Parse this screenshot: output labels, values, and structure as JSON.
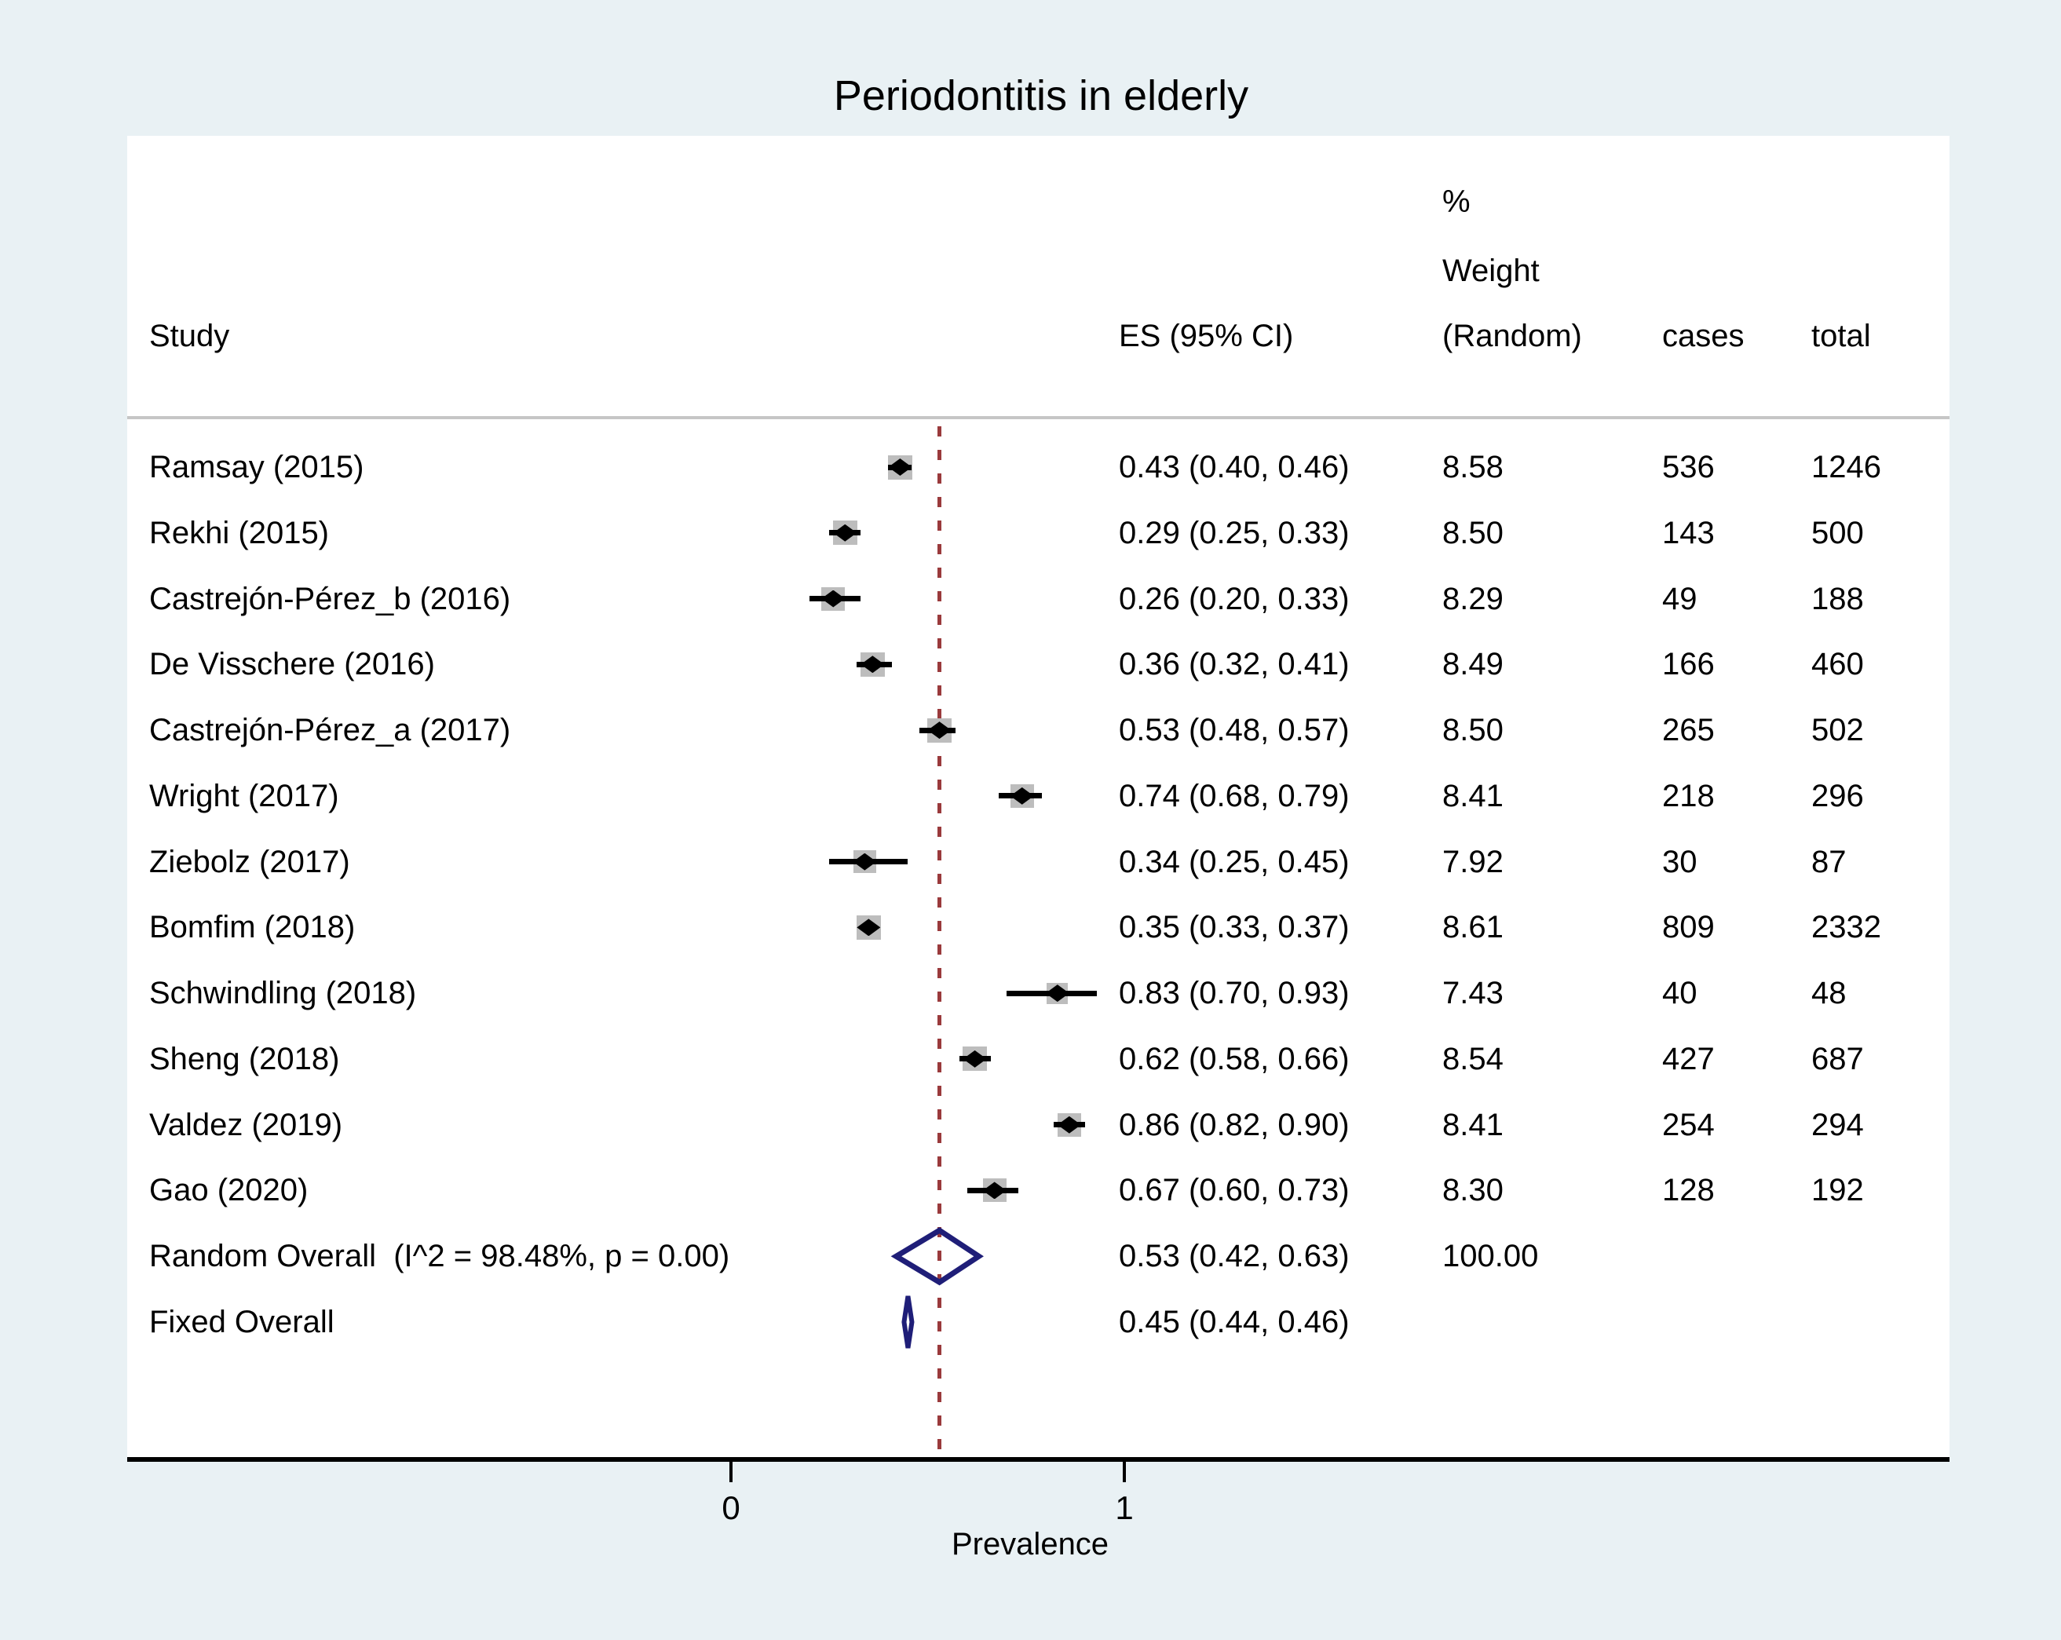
{
  "title": "Periodontitis in elderly",
  "header": {
    "study": "Study",
    "es": "ES (95% CI)",
    "pct": "%",
    "weight": "Weight",
    "weight_model": "(Random)",
    "cases": "cases",
    "total": "total"
  },
  "axis": {
    "xlabel": "Prevalence",
    "ticks": [
      {
        "label": "0",
        "value": 0
      },
      {
        "label": "1",
        "value": 1
      }
    ]
  },
  "colors": {
    "background": "#e9f1f4",
    "panel": "#ffffff",
    "header_rule": "#c6c6c6",
    "null_line": "#9a3a3c",
    "ci_line": "#000000",
    "weight_box": "#bdbdbd",
    "marker": "#000000",
    "overall_diamond": "#1f1e78",
    "text": "#000000"
  },
  "chart_data": {
    "type": "forest",
    "title": "Periodontitis in elderly",
    "xlabel": "Prevalence",
    "x_ticks": [
      0,
      1
    ],
    "null_line_value": 0.53,
    "legend_position": "none",
    "grid": false,
    "studies": [
      {
        "label": "Ramsay (2015)",
        "es": 0.43,
        "lo": 0.4,
        "hi": 0.46,
        "es_text": "0.43 (0.40, 0.46)",
        "weight": "8.58",
        "cases": "536",
        "total": "1246"
      },
      {
        "label": "Rekhi (2015)",
        "es": 0.29,
        "lo": 0.25,
        "hi": 0.33,
        "es_text": "0.29 (0.25, 0.33)",
        "weight": "8.50",
        "cases": "143",
        "total": "500"
      },
      {
        "label": "Castrejón-Pérez_b (2016)",
        "es": 0.26,
        "lo": 0.2,
        "hi": 0.33,
        "es_text": "0.26 (0.20, 0.33)",
        "weight": "8.29",
        "cases": "49",
        "total": "188"
      },
      {
        "label": "De Visschere (2016)",
        "es": 0.36,
        "lo": 0.32,
        "hi": 0.41,
        "es_text": "0.36 (0.32, 0.41)",
        "weight": "8.49",
        "cases": "166",
        "total": "460"
      },
      {
        "label": "Castrejón-Pérez_a (2017)",
        "es": 0.53,
        "lo": 0.48,
        "hi": 0.57,
        "es_text": "0.53 (0.48, 0.57)",
        "weight": "8.50",
        "cases": "265",
        "total": "502"
      },
      {
        "label": "Wright (2017)",
        "es": 0.74,
        "lo": 0.68,
        "hi": 0.79,
        "es_text": "0.74 (0.68, 0.79)",
        "weight": "8.41",
        "cases": "218",
        "total": "296"
      },
      {
        "label": "Ziebolz (2017)",
        "es": 0.34,
        "lo": 0.25,
        "hi": 0.45,
        "es_text": "0.34 (0.25, 0.45)",
        "weight": "7.92",
        "cases": "30",
        "total": "87"
      },
      {
        "label": "Bomfim (2018)",
        "es": 0.35,
        "lo": 0.33,
        "hi": 0.37,
        "es_text": "0.35 (0.33, 0.37)",
        "weight": "8.61",
        "cases": "809",
        "total": "2332"
      },
      {
        "label": "Schwindling (2018)",
        "es": 0.83,
        "lo": 0.7,
        "hi": 0.93,
        "es_text": "0.83 (0.70, 0.93)",
        "weight": "7.43",
        "cases": "40",
        "total": "48"
      },
      {
        "label": "Sheng (2018)",
        "es": 0.62,
        "lo": 0.58,
        "hi": 0.66,
        "es_text": "0.62 (0.58, 0.66)",
        "weight": "8.54",
        "cases": "427",
        "total": "687"
      },
      {
        "label": "Valdez (2019)",
        "es": 0.86,
        "lo": 0.82,
        "hi": 0.9,
        "es_text": "0.86 (0.82, 0.90)",
        "weight": "8.41",
        "cases": "254",
        "total": "294"
      },
      {
        "label": "Gao (2020)",
        "es": 0.67,
        "lo": 0.6,
        "hi": 0.73,
        "es_text": "0.67 (0.60, 0.73)",
        "weight": "8.30",
        "cases": "128",
        "total": "192"
      }
    ],
    "overalls": [
      {
        "label": "Random Overall  (I^2 = 98.48%, p = 0.00)",
        "es": 0.53,
        "lo": 0.42,
        "hi": 0.63,
        "es_text": "0.53 (0.42, 0.63)",
        "weight": "100.00",
        "style": "wide"
      },
      {
        "label": "Fixed Overall",
        "es": 0.45,
        "lo": 0.44,
        "hi": 0.46,
        "es_text": "0.45 (0.44, 0.46)",
        "weight": "",
        "style": "narrow"
      }
    ]
  }
}
